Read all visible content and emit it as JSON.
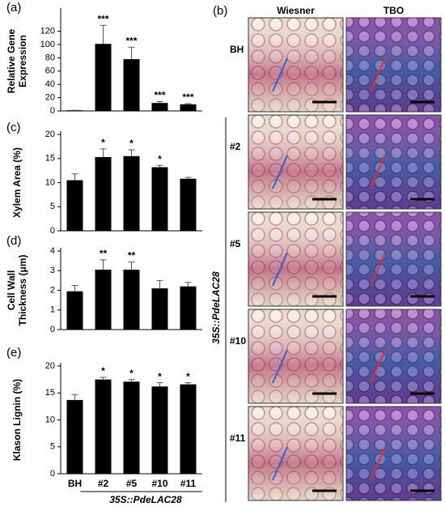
{
  "chart_data": [
    {
      "type": "bar",
      "panel": "(a)",
      "ylabel": [
        "Relative Gene",
        "Expression"
      ],
      "values": [
        1,
        101,
        78,
        12,
        10
      ],
      "errors": [
        0,
        28,
        18,
        2,
        1
      ],
      "annotations": [
        null,
        "***",
        "***",
        "***",
        "***"
      ],
      "ylim": [
        0,
        150
      ],
      "yticks": [
        0,
        20,
        40,
        60,
        80,
        100,
        120
      ],
      "color": "#000000"
    },
    {
      "type": "bar",
      "panel": "(c)",
      "ylabel": [
        "Xylem Area (%)"
      ],
      "values": [
        10.5,
        15.3,
        15.5,
        13.2,
        10.8
      ],
      "errors": [
        1.3,
        1.7,
        1.3,
        0.4,
        0.3
      ],
      "annotations": [
        null,
        "*",
        "*",
        "*",
        null
      ],
      "ylim": [
        0,
        20
      ],
      "yticks": [
        0,
        5,
        10,
        15,
        20
      ],
      "color": "#000000"
    },
    {
      "type": "bar",
      "panel": "(d)",
      "ylabel": [
        "Cell Wall",
        "Thickness (μm)"
      ],
      "values": [
        1.95,
        3.05,
        3.05,
        2.1,
        2.2
      ],
      "errors": [
        0.3,
        0.5,
        0.4,
        0.4,
        0.2
      ],
      "annotations": [
        null,
        "**",
        "**",
        null,
        null
      ],
      "ylim": [
        0,
        4
      ],
      "yticks": [
        0,
        1,
        2,
        3,
        4
      ],
      "color": "#000000"
    },
    {
      "type": "bar",
      "panel": "(e)",
      "ylabel": [
        "Klason Lignin (%)"
      ],
      "categories": [
        "BH",
        "#2",
        "#5",
        "#10",
        "#11"
      ],
      "group_label": "35S::PdeLAC28",
      "values": [
        13.7,
        17.5,
        17.1,
        16.2,
        16.6
      ],
      "errors": [
        1.0,
        0.4,
        0.4,
        0.7,
        0.3
      ],
      "annotations": [
        null,
        "*",
        "*",
        "*",
        "*"
      ],
      "ylim": [
        0,
        20
      ],
      "yticks": [
        0,
        5,
        10,
        15,
        20
      ],
      "color": "#000000"
    }
  ],
  "images": {
    "panel": "(b)",
    "columns": [
      "Wiesner",
      "TBO"
    ],
    "rows": [
      "BH",
      "#2",
      "#5",
      "#10",
      "#11"
    ],
    "group_label": "35S::PdeLAC28"
  }
}
